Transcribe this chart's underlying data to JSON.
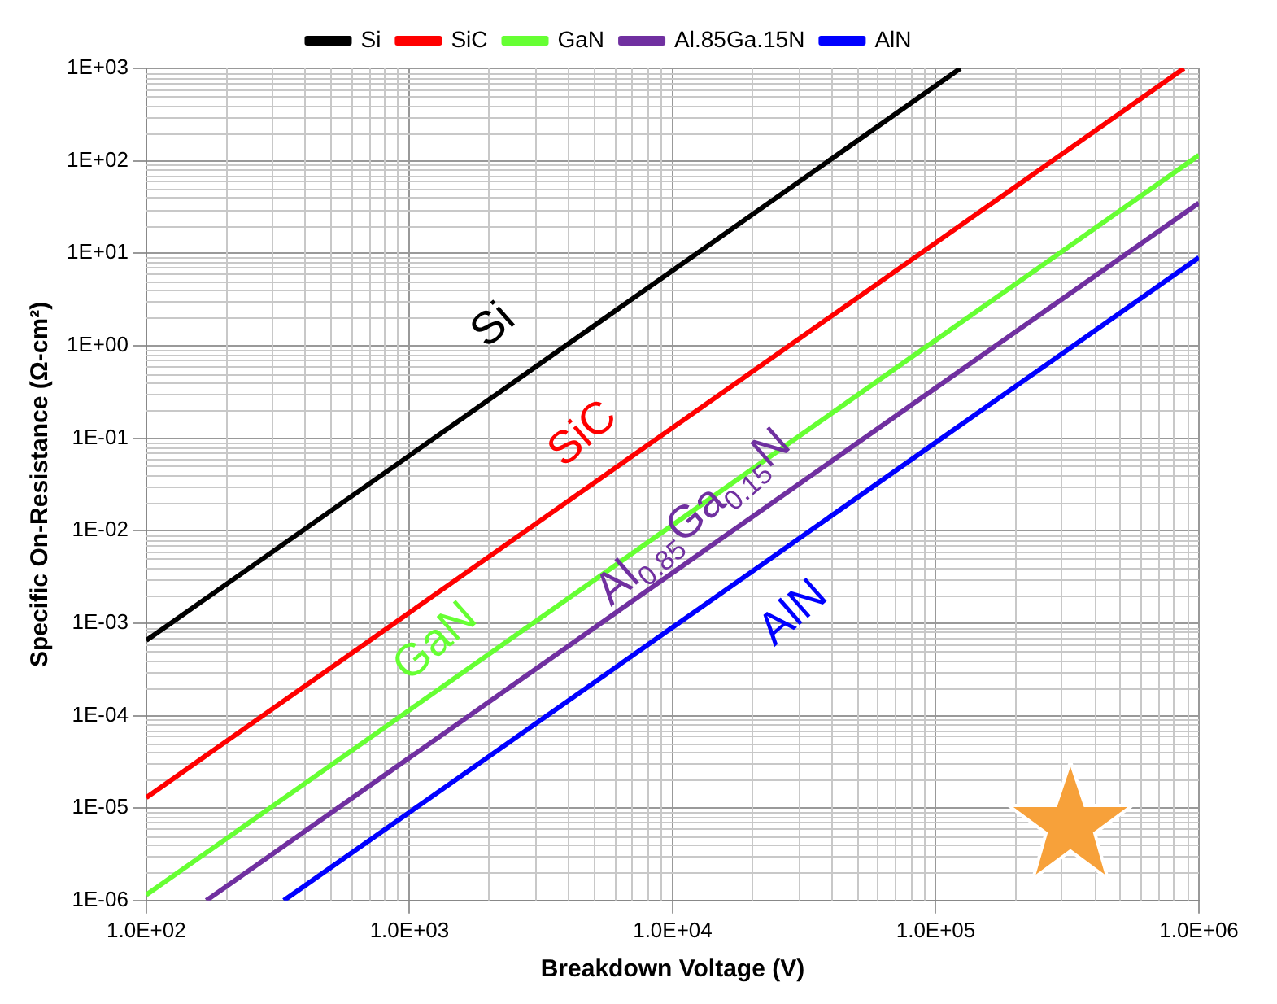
{
  "chart_data": {
    "type": "line",
    "xlabel": "Breakdown Voltage (V)",
    "ylabel": "Specific On-Resistance (Ω-cm²)",
    "log": "xy",
    "grid": true,
    "legend": "top",
    "marker": "none",
    "line_style": "solid",
    "xlim": [
      100,
      1000000
    ],
    "ylim": [
      1e-06,
      1000
    ],
    "xticks": [
      {
        "value": 100,
        "label": "1.0E+02"
      },
      {
        "value": 1000,
        "label": "1.0E+03"
      },
      {
        "value": 10000,
        "label": "1.0E+04"
      },
      {
        "value": 100000,
        "label": "1.0E+05"
      },
      {
        "value": 1000000,
        "label": "1.0E+06"
      }
    ],
    "yticks": [
      {
        "value": 1e-06,
        "label": "1E-06"
      },
      {
        "value": 1e-05,
        "label": "1E-05"
      },
      {
        "value": 0.0001,
        "label": "1E-04"
      },
      {
        "value": 0.001,
        "label": "1E-03"
      },
      {
        "value": 0.01,
        "label": "1E-02"
      },
      {
        "value": 0.1,
        "label": "1E-01"
      },
      {
        "value": 1,
        "label": "1E+00"
      },
      {
        "value": 10,
        "label": "1E+01"
      },
      {
        "value": 100,
        "label": "1E+02"
      },
      {
        "value": 1000,
        "label": "1E+03"
      }
    ],
    "series": [
      {
        "name": "Si",
        "color": "#000000",
        "x": [
          100,
          1000,
          10000,
          100000,
          124000
        ],
        "values": [
          0.00065,
          0.065,
          6.5,
          650,
          1000
        ]
      },
      {
        "name": "SiC",
        "color": "#ff0000",
        "x": [
          100,
          1000,
          10000,
          100000,
          877000
        ],
        "values": [
          1.3e-05,
          0.0013,
          0.13,
          13,
          1000
        ]
      },
      {
        "name": "GaN",
        "color": "#66ff33",
        "x": [
          100,
          1000,
          10000,
          100000,
          1000000
        ],
        "values": [
          1.15e-06,
          0.000115,
          0.0115,
          1.15,
          115
        ]
      },
      {
        "name": "Al.85Ga.15N",
        "color": "#7030a0",
        "x": [
          169,
          1000,
          10000,
          100000,
          1000000
        ],
        "values": [
          1e-06,
          3.5e-05,
          0.0035,
          0.35,
          35
        ]
      },
      {
        "name": "AlN",
        "color": "#0000ff",
        "x": [
          333,
          1000,
          10000,
          100000,
          1000000
        ],
        "values": [
          1e-06,
          9e-06,
          0.0009,
          0.09,
          9
        ]
      }
    ],
    "annotations": [
      "Si",
      "SiC",
      "GaN",
      "Al$_{0.85}$Ga$_{0.15}$N",
      "AlN"
    ]
  }
}
